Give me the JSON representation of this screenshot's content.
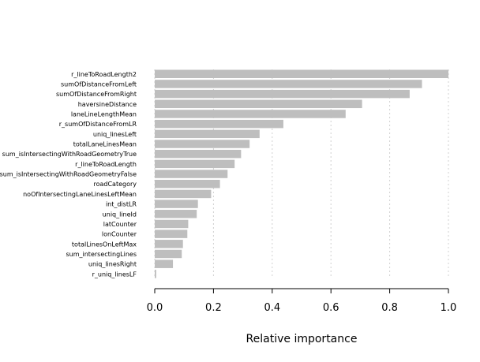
{
  "chart_data": {
    "type": "bar",
    "orientation": "horizontal",
    "categories": [
      "r_lineToRoadLength2",
      "sumOfDistanceFromLeft",
      "sumOfDistanceFromRight",
      "haversineDistance",
      "laneLineLengthMean",
      "r_sumOfDistanceFromLR",
      "uniq_linesLeft",
      "totalLaneLinesMean",
      "sum_isIntersectingWithRoadGeometryTrue",
      "r_lineToRoadLength",
      "sum_isIntersectingWithRoadGeometryFalse",
      "roadCategory",
      "noOfIntersectingLaneLinesLeftMean",
      "int_distLR",
      "uniq_lineId",
      "latCounter",
      "lonCounter",
      "totalLinesOnLeftMax",
      "sum_intersectingLines",
      "uniq_linesRight",
      "r_uniq_linesLF"
    ],
    "values": [
      1.0,
      0.91,
      0.868,
      0.706,
      0.65,
      0.438,
      0.357,
      0.323,
      0.294,
      0.272,
      0.248,
      0.222,
      0.192,
      0.147,
      0.143,
      0.114,
      0.111,
      0.096,
      0.092,
      0.062,
      0.005
    ],
    "xlabel": "Relative importance",
    "ylabel": "",
    "xticks": [
      "0.0",
      "0.2",
      "0.4",
      "0.6",
      "0.8",
      "1.0"
    ],
    "xlim": [
      0,
      1
    ],
    "grid": true,
    "bar_color": "#bebebe",
    "grid_color": "#d0d0d0"
  }
}
